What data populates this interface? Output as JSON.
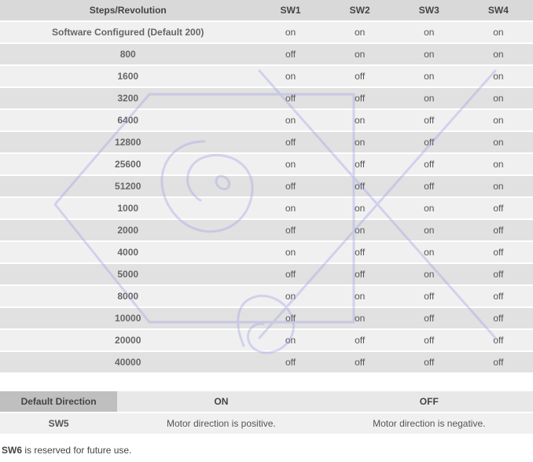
{
  "main_table": {
    "headers": [
      "Steps/Revolution",
      "SW1",
      "SW2",
      "SW3",
      "SW4"
    ],
    "rows": [
      [
        "Software Configured (Default 200)",
        "on",
        "on",
        "on",
        "on"
      ],
      [
        "800",
        "off",
        "on",
        "on",
        "on"
      ],
      [
        "1600",
        "on",
        "off",
        "on",
        "on"
      ],
      [
        "3200",
        "off",
        "off",
        "on",
        "on"
      ],
      [
        "6400",
        "on",
        "on",
        "off",
        "on"
      ],
      [
        "12800",
        "off",
        "on",
        "off",
        "on"
      ],
      [
        "25600",
        "on",
        "off",
        "off",
        "on"
      ],
      [
        "51200",
        "off",
        "off",
        "off",
        "on"
      ],
      [
        "1000",
        "on",
        "on",
        "on",
        "off"
      ],
      [
        "2000",
        "off",
        "on",
        "on",
        "off"
      ],
      [
        "4000",
        "on",
        "off",
        "on",
        "off"
      ],
      [
        "5000",
        "off",
        "off",
        "on",
        "off"
      ],
      [
        "8000",
        "on",
        "on",
        "off",
        "off"
      ],
      [
        "10000",
        "off",
        "on",
        "off",
        "off"
      ],
      [
        "20000",
        "on",
        "off",
        "off",
        "off"
      ],
      [
        "40000",
        "off",
        "off",
        "off",
        "off"
      ]
    ]
  },
  "dir_table": {
    "headers": [
      "Default Direction",
      "ON",
      "OFF"
    ],
    "row": [
      "SW5",
      "Motor direction is positive.",
      "Motor direction is negative."
    ]
  },
  "footnote": {
    "bold": "SW6",
    "rest": " is reserved for future use."
  },
  "watermark": {
    "stroke": "#9a9ae8",
    "stroke_width": 3
  }
}
